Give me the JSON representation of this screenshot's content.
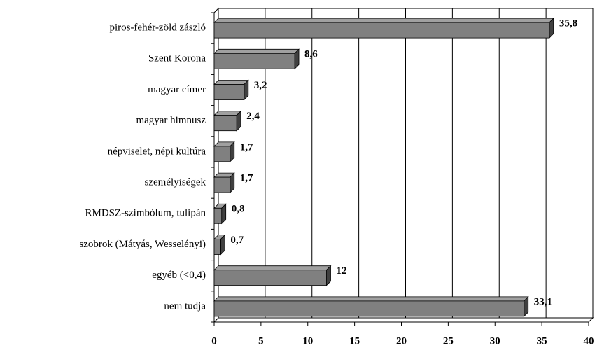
{
  "chart_data": {
    "type": "bar3d_horizontal",
    "categories": [
      "piros-fehér-zöld zászló",
      "Szent Korona",
      "magyar címer",
      "magyar himnusz",
      "népviselet, népi kultúra",
      "személyiségek",
      "RMDSZ-szimbólum, tulipán",
      "szobrok (Mátyás, Wesselényi)",
      "egyéb (<0,4)",
      "nem tudja"
    ],
    "values": [
      35.8,
      8.6,
      3.2,
      2.4,
      1.7,
      1.7,
      0.8,
      0.7,
      12,
      33.1
    ],
    "value_labels": [
      "35,8",
      "8,6",
      "3,2",
      "2,4",
      "1,7",
      "1,7",
      "0,8",
      "0,7",
      "12",
      "33,1"
    ],
    "color": "#808080",
    "xlim": [
      0,
      40
    ],
    "xticks": [
      0,
      5,
      10,
      15,
      20,
      25,
      30,
      35,
      40
    ],
    "grid": true
  }
}
